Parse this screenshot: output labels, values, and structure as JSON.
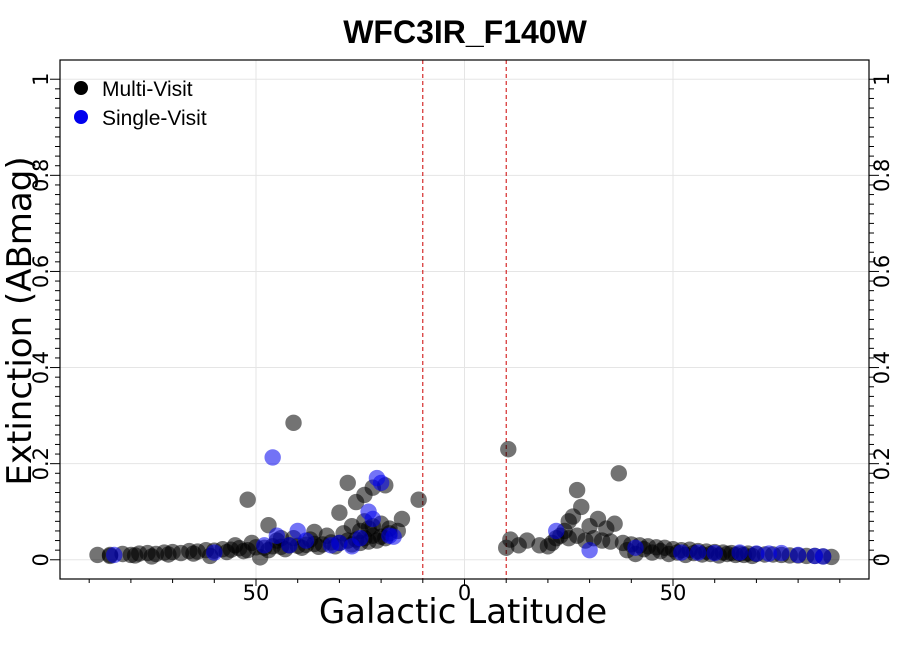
{
  "chart_data": {
    "type": "scatter",
    "title": "WFC3IR_F140W",
    "xlabel": "Galactic Latitude",
    "ylabel": "Extinction (ABmag)",
    "xlim": [
      -97,
      97
    ],
    "ylim": [
      -0.04,
      1.04
    ],
    "x_ticks": [
      {
        "value": -50,
        "label": "50"
      },
      {
        "value": 0,
        "label": "0"
      },
      {
        "value": 50,
        "label": "50"
      }
    ],
    "y_ticks": [
      {
        "value": 0,
        "label": "0"
      },
      {
        "value": 0.2,
        "label": "0.2"
      },
      {
        "value": 0.4,
        "label": "0.4"
      },
      {
        "value": 0.6,
        "label": "0.6"
      },
      {
        "value": 0.8,
        "label": "0.8"
      },
      {
        "value": 1,
        "label": "1"
      }
    ],
    "grid": true,
    "legend_position": "top-left",
    "reference_lines": [
      {
        "x": -10,
        "color": "#cc0000",
        "style": "dashed"
      },
      {
        "x": 10,
        "color": "#cc0000",
        "style": "dashed"
      }
    ],
    "series": [
      {
        "name": "Multi-Visit",
        "color": "#000000",
        "points": [
          [
            -88,
            0.01
          ],
          [
            -85,
            0.01
          ],
          [
            -82,
            0.012
          ],
          [
            -80,
            0.01
          ],
          [
            -78,
            0.013
          ],
          [
            -76,
            0.014
          ],
          [
            -74,
            0.012
          ],
          [
            -72,
            0.015
          ],
          [
            -70,
            0.016
          ],
          [
            -68,
            0.014
          ],
          [
            -66,
            0.018
          ],
          [
            -64,
            0.017
          ],
          [
            -62,
            0.02
          ],
          [
            -60,
            0.019
          ],
          [
            -58,
            0.022
          ],
          [
            -56,
            0.021
          ],
          [
            -54,
            0.024
          ],
          [
            -52,
            0.02
          ],
          [
            -50,
            0.026
          ],
          [
            -48,
            0.025
          ],
          [
            -46,
            0.028
          ],
          [
            -44,
            0.027
          ],
          [
            -42,
            0.03
          ],
          [
            -40,
            0.029
          ],
          [
            -38,
            0.031
          ],
          [
            -36,
            0.033
          ],
          [
            -34,
            0.032
          ],
          [
            -32,
            0.036
          ],
          [
            -30,
            0.035
          ],
          [
            -28,
            0.04
          ],
          [
            -26,
            0.042
          ],
          [
            -24,
            0.045
          ],
          [
            -22,
            0.05
          ],
          [
            -20,
            0.048
          ],
          [
            -18,
            0.055
          ],
          [
            -16,
            0.06
          ],
          [
            -85,
            0.008
          ],
          [
            -79,
            0.009
          ],
          [
            -71,
            0.011
          ],
          [
            -65,
            0.013
          ],
          [
            -57,
            0.016
          ],
          [
            -53,
            0.018
          ],
          [
            -47,
            0.02
          ],
          [
            -43,
            0.022
          ],
          [
            -39,
            0.025
          ],
          [
            -35,
            0.027
          ],
          [
            -31,
            0.028
          ],
          [
            -27,
            0.032
          ],
          [
            -25,
            0.035
          ],
          [
            -23,
            0.038
          ],
          [
            -21,
            0.04
          ],
          [
            -19,
            0.045
          ],
          [
            -55,
            0.03
          ],
          [
            -51,
            0.035
          ],
          [
            -45,
            0.04
          ],
          [
            -41,
            0.045
          ],
          [
            -37,
            0.042
          ],
          [
            -33,
            0.05
          ],
          [
            -29,
            0.055
          ],
          [
            -27,
            0.07
          ],
          [
            -25,
            0.06
          ],
          [
            -24,
            0.08
          ],
          [
            -23,
            0.065
          ],
          [
            -22,
            0.07
          ],
          [
            -20,
            0.075
          ],
          [
            -18,
            0.065
          ],
          [
            -49,
            0.005
          ],
          [
            -61,
            0.008
          ],
          [
            -75,
            0.007
          ],
          [
            -52,
            0.125
          ],
          [
            -41,
            0.285
          ],
          [
            -47,
            0.072
          ],
          [
            -44,
            0.045
          ],
          [
            -36,
            0.058
          ],
          [
            -30,
            0.098
          ],
          [
            -28,
            0.16
          ],
          [
            -26,
            0.12
          ],
          [
            -24,
            0.135
          ],
          [
            -22,
            0.15
          ],
          [
            -19,
            0.155
          ],
          [
            -15,
            0.085
          ],
          [
            -11,
            0.125
          ],
          [
            10,
            0.025
          ],
          [
            10.5,
            0.23
          ],
          [
            11,
            0.042
          ],
          [
            13,
            0.03
          ],
          [
            15,
            0.04
          ],
          [
            18,
            0.03
          ],
          [
            20,
            0.028
          ],
          [
            22,
            0.045
          ],
          [
            24,
            0.06
          ],
          [
            25,
            0.08
          ],
          [
            26,
            0.09
          ],
          [
            27,
            0.145
          ],
          [
            28,
            0.11
          ],
          [
            30,
            0.07
          ],
          [
            32,
            0.085
          ],
          [
            34,
            0.065
          ],
          [
            36,
            0.075
          ],
          [
            37,
            0.18
          ],
          [
            21,
            0.035
          ],
          [
            23,
            0.05
          ],
          [
            25,
            0.045
          ],
          [
            27,
            0.05
          ],
          [
            29,
            0.04
          ],
          [
            31,
            0.045
          ],
          [
            33,
            0.04
          ],
          [
            35,
            0.038
          ],
          [
            38,
            0.035
          ],
          [
            40,
            0.032
          ],
          [
            42,
            0.03
          ],
          [
            44,
            0.028
          ],
          [
            46,
            0.026
          ],
          [
            48,
            0.025
          ],
          [
            50,
            0.022
          ],
          [
            52,
            0.02
          ],
          [
            54,
            0.021
          ],
          [
            56,
            0.018
          ],
          [
            58,
            0.017
          ],
          [
            60,
            0.016
          ],
          [
            62,
            0.015
          ],
          [
            64,
            0.014
          ],
          [
            66,
            0.013
          ],
          [
            68,
            0.013
          ],
          [
            70,
            0.012
          ],
          [
            72,
            0.011
          ],
          [
            74,
            0.011
          ],
          [
            76,
            0.01
          ],
          [
            78,
            0.009
          ],
          [
            80,
            0.009
          ],
          [
            82,
            0.008
          ],
          [
            84,
            0.008
          ],
          [
            86,
            0.007
          ],
          [
            88,
            0.006
          ],
          [
            41,
            0.012
          ],
          [
            45,
            0.015
          ],
          [
            49,
            0.012
          ],
          [
            53,
            0.01
          ],
          [
            57,
            0.011
          ],
          [
            61,
            0.009
          ],
          [
            65,
            0.01
          ],
          [
            69,
            0.008
          ],
          [
            39,
            0.02
          ],
          [
            43,
            0.022
          ],
          [
            47,
            0.018
          ],
          [
            51,
            0.015
          ],
          [
            55,
            0.014
          ],
          [
            59,
            0.012
          ],
          [
            63,
            0.012
          ],
          [
            67,
            0.01
          ]
        ]
      },
      {
        "name": "Single-Visit",
        "color": "#0000ee",
        "points": [
          [
            -84,
            0.01
          ],
          [
            -60,
            0.015
          ],
          [
            -48,
            0.03
          ],
          [
            -46,
            0.213
          ],
          [
            -45,
            0.05
          ],
          [
            -42,
            0.03
          ],
          [
            -40,
            0.06
          ],
          [
            -38,
            0.04
          ],
          [
            -32,
            0.03
          ],
          [
            -30,
            0.035
          ],
          [
            -27,
            0.028
          ],
          [
            -25,
            0.045
          ],
          [
            -23,
            0.1
          ],
          [
            -22,
            0.085
          ],
          [
            -21,
            0.17
          ],
          [
            -20,
            0.16
          ],
          [
            -18,
            0.05
          ],
          [
            -17,
            0.048
          ],
          [
            22,
            0.06
          ],
          [
            30,
            0.02
          ],
          [
            41,
            0.025
          ],
          [
            52,
            0.015
          ],
          [
            56,
            0.015
          ],
          [
            60,
            0.014
          ],
          [
            66,
            0.015
          ],
          [
            70,
            0.013
          ],
          [
            73,
            0.013
          ],
          [
            76,
            0.014
          ],
          [
            80,
            0.01
          ],
          [
            84,
            0.008
          ],
          [
            86,
            0.007
          ]
        ]
      }
    ]
  }
}
